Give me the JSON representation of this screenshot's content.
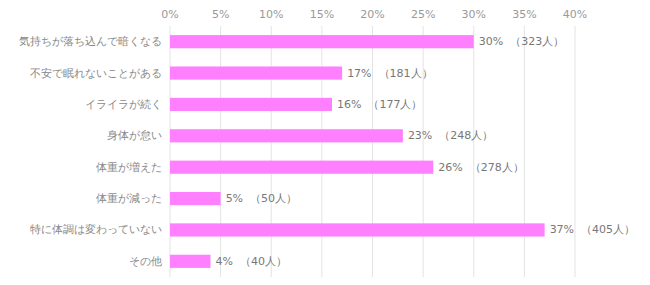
{
  "chart_data": {
    "type": "bar",
    "orientation": "horizontal",
    "categories": [
      "気持ちが落ち込んで暗くなる",
      "不安で眠れないことがある",
      "イライラが続く",
      "身体が怠い",
      "体重が増えた",
      "体重が減った",
      "特に体調は変わっていない",
      "その他"
    ],
    "values": [
      30,
      17,
      16,
      23,
      26,
      5,
      37,
      4
    ],
    "value_labels": [
      "30%  （323人）",
      "17%  （181人）",
      "16%  （177人）",
      "23%  （248人）",
      "26%  （278人）",
      "5%  （50人）",
      "37%  （405人）",
      "4%  （40人）"
    ],
    "data_labels": true,
    "color": "#FF80FF",
    "xlim": [
      0,
      40
    ],
    "xticks": [
      {
        "value": 0,
        "label": "0%"
      },
      {
        "value": 5,
        "label": "5%"
      },
      {
        "value": 10,
        "label": "10%"
      },
      {
        "value": 15,
        "label": "15%"
      },
      {
        "value": 20,
        "label": "20%"
      },
      {
        "value": 25,
        "label": "25%"
      },
      {
        "value": 30,
        "label": "30%"
      },
      {
        "value": 35,
        "label": "35%"
      },
      {
        "value": 40,
        "label": "40%"
      }
    ],
    "grid": true
  }
}
